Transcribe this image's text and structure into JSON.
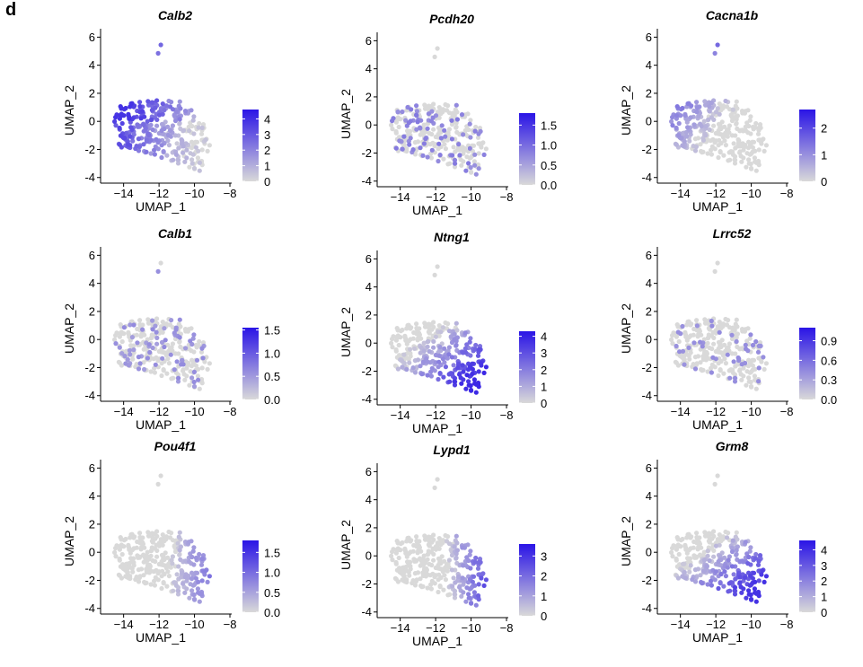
{
  "panel_label": "d",
  "colors": {
    "low": "#d9d9d9",
    "high": "#2a14e6",
    "text": "#000000"
  },
  "chart_data": [
    {
      "type": "scatter",
      "title": "Calb2",
      "xlabel": "UMAP_1",
      "ylabel": "UMAP_2",
      "xlim": [
        -15.3,
        -7.9
      ],
      "ylim": [
        -4.4,
        6.6
      ],
      "xticks": [
        -14,
        -12,
        -10,
        -8
      ],
      "yticks": [
        -4,
        -2,
        0,
        2,
        4,
        6
      ],
      "pattern": "west",
      "strength": 0.85,
      "legend": {
        "max": 4.6,
        "ticks": [
          0,
          1,
          2,
          3,
          4
        ],
        "labels": [
          "0",
          "1",
          "2",
          "3",
          "4"
        ]
      }
    },
    {
      "type": "scatter",
      "title": "Pcdh20",
      "xlabel": "UMAP_1",
      "ylabel": "UMAP_2",
      "xlim": [
        -15.3,
        -7.9
      ],
      "ylim": [
        -4.4,
        6.6
      ],
      "xticks": [
        -14,
        -12,
        -10,
        -8
      ],
      "yticks": [
        -4,
        -2,
        0,
        2,
        4,
        6
      ],
      "pattern": "sparse",
      "strength": 0.55,
      "legend": {
        "max": 1.8,
        "ticks": [
          0,
          0.5,
          1,
          1.5
        ],
        "labels": [
          "0.0",
          "0.5",
          "1.0",
          "1.5"
        ]
      }
    },
    {
      "type": "scatter",
      "title": "Cacna1b",
      "xlabel": "UMAP_1",
      "ylabel": "UMAP_2",
      "xlim": [
        -15.3,
        -7.9
      ],
      "ylim": [
        -4.4,
        6.6
      ],
      "xticks": [
        -14,
        -12,
        -10,
        -8
      ],
      "yticks": [
        -4,
        -2,
        0,
        2,
        4,
        6
      ],
      "pattern": "northwest",
      "strength": 0.7,
      "legend": {
        "max": 2.7,
        "ticks": [
          0,
          1,
          2
        ],
        "labels": [
          "0",
          "1",
          "2"
        ]
      }
    },
    {
      "type": "scatter",
      "title": "Calb1",
      "xlabel": "UMAP_1",
      "ylabel": "UMAP_2",
      "xlim": [
        -15.3,
        -7.9
      ],
      "ylim": [
        -4.4,
        6.6
      ],
      "xticks": [
        -14,
        -12,
        -10,
        -8
      ],
      "yticks": [
        -4,
        -2,
        0,
        2,
        4,
        6
      ],
      "pattern": "sparse",
      "strength": 0.45,
      "legend": {
        "max": 1.55,
        "ticks": [
          0,
          0.5,
          1,
          1.5
        ],
        "labels": [
          "0.0",
          "0.5",
          "1.0",
          "1.5"
        ]
      }
    },
    {
      "type": "scatter",
      "title": "Ntng1",
      "xlabel": "UMAP_1",
      "ylabel": "UMAP_2",
      "xlim": [
        -15.3,
        -7.9
      ],
      "ylim": [
        -4.4,
        6.6
      ],
      "xticks": [
        -14,
        -12,
        -10,
        -8
      ],
      "yticks": [
        -4,
        -2,
        0,
        2,
        4,
        6
      ],
      "pattern": "southeast",
      "strength": 0.9,
      "legend": {
        "max": 4.3,
        "ticks": [
          0,
          1,
          2,
          3,
          4
        ],
        "labels": [
          "0",
          "1",
          "2",
          "3",
          "4"
        ]
      }
    },
    {
      "type": "scatter",
      "title": "Lrrc52",
      "xlabel": "UMAP_1",
      "ylabel": "UMAP_2",
      "xlim": [
        -15.3,
        -7.9
      ],
      "ylim": [
        -4.4,
        6.6
      ],
      "xticks": [
        -14,
        -12,
        -10,
        -8
      ],
      "yticks": [
        -4,
        -2,
        0,
        2,
        4,
        6
      ],
      "pattern": "verysparse",
      "strength": 0.4,
      "legend": {
        "max": 1.1,
        "ticks": [
          0,
          0.3,
          0.6,
          0.9
        ],
        "labels": [
          "0.0",
          "0.3",
          "0.6",
          "0.9"
        ]
      }
    },
    {
      "type": "scatter",
      "title": "Pou4f1",
      "xlabel": "UMAP_1",
      "ylabel": "UMAP_2",
      "xlim": [
        -15.3,
        -7.9
      ],
      "ylim": [
        -4.4,
        6.6
      ],
      "xticks": [
        -14,
        -12,
        -10,
        -8
      ],
      "yticks": [
        -4,
        -2,
        0,
        2,
        4,
        6
      ],
      "pattern": "east",
      "strength": 0.6,
      "legend": {
        "max": 1.8,
        "ticks": [
          0,
          0.5,
          1,
          1.5
        ],
        "labels": [
          "0.0",
          "0.5",
          "1.0",
          "1.5"
        ]
      }
    },
    {
      "type": "scatter",
      "title": "Lypd1",
      "xlabel": "UMAP_1",
      "ylabel": "UMAP_2",
      "xlim": [
        -15.3,
        -7.9
      ],
      "ylim": [
        -4.4,
        6.6
      ],
      "xticks": [
        -14,
        -12,
        -10,
        -8
      ],
      "yticks": [
        -4,
        -2,
        0,
        2,
        4,
        6
      ],
      "pattern": "east",
      "strength": 0.85,
      "legend": {
        "max": 3.6,
        "ticks": [
          0,
          1,
          2,
          3
        ],
        "labels": [
          "0",
          "1",
          "2",
          "3"
        ]
      }
    },
    {
      "type": "scatter",
      "title": "Grm8",
      "xlabel": "UMAP_1",
      "ylabel": "UMAP_2",
      "xlim": [
        -15.3,
        -7.9
      ],
      "ylim": [
        -4.4,
        6.6
      ],
      "xticks": [
        -14,
        -12,
        -10,
        -8
      ],
      "yticks": [
        -4,
        -2,
        0,
        2,
        4,
        6
      ],
      "pattern": "southeast",
      "strength": 0.85,
      "legend": {
        "max": 4.6,
        "ticks": [
          0,
          1,
          2,
          3,
          4
        ],
        "labels": [
          "0",
          "1",
          "2",
          "3",
          "4"
        ]
      }
    }
  ]
}
